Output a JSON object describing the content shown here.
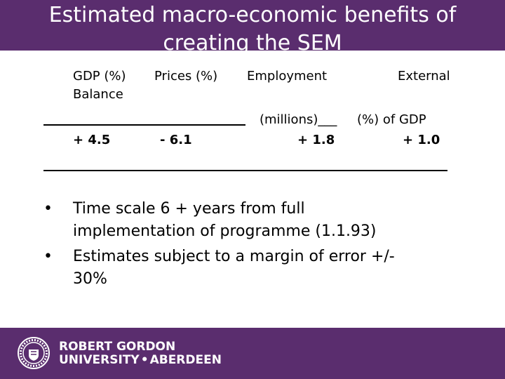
{
  "slide": {
    "title_line1": "Estimated macro-economic benefits of",
    "title_line2": "creating the SEM"
  },
  "table": {
    "headers": {
      "gdp": "GDP (%)",
      "balance": "Balance",
      "prices": "Prices (%)",
      "employment": "Employment",
      "external": "External",
      "millions": "(millions)___",
      "pct_gdp": "(%) of GDP",
      "underline": "____________________"
    },
    "values": {
      "gdp": "+ 4.5",
      "prices": "- 6.1",
      "employment": "+ 1.8",
      "external": "+ 1.0"
    }
  },
  "bullets": [
    {
      "marker": "•",
      "line1": "Time scale 6 + years from full",
      "line2": "implementation of programme (1.1.93)"
    },
    {
      "marker": "•",
      "line1": "Estimates subject to a margin of error +/-",
      "line2": "30%"
    }
  ],
  "footer": {
    "logo_line1": "ROBERT GORDON",
    "logo_line2a": "UNIVERSITY",
    "logo_dot": "•",
    "logo_line2b": "ABERDEEN",
    "colors": {
      "brand_purple": "#5a2d6e",
      "text": "#ffffff"
    },
    "seal_icon": "university-seal-icon"
  }
}
